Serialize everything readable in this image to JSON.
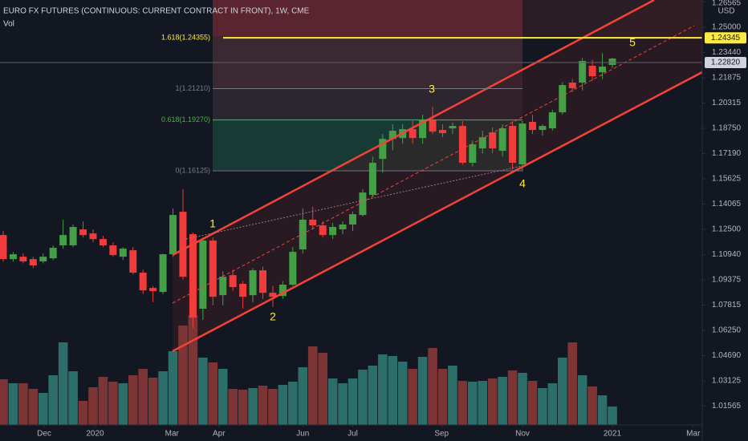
{
  "chart_data": {
    "type": "candlestick",
    "title": "EURO FX FUTURES (CONTINUOUS: CURRENT CONTRACT IN FRONT), 1W, CME",
    "volume_label": "Vol",
    "currency": "USD",
    "up_color": "#43a047",
    "down_color": "#f23b3b",
    "volume_up_color": "#2b6e6a",
    "volume_down_color": "#7c3434",
    "open": [
      1.1215,
      1.1066,
      1.1081,
      1.1066,
      1.1052,
      1.1071,
      1.1151,
      1.1151,
      1.125,
      1.1225,
      1.119,
      1.1151,
      1.1081,
      1.1121,
      1.0982,
      1.0888,
      1.0863,
      1.1096,
      1.1359,
      1.122,
      1.0759,
      1.1181,
      1.0843,
      1.0967,
      1.0913,
      1.0843,
      1.0997,
      1.0858,
      1.0838,
      1.0908,
      1.1126,
      1.131,
      1.1275,
      1.1215,
      1.125,
      1.128,
      1.1339,
      1.1463,
      1.1686,
      1.181,
      1.1815,
      1.187,
      1.1815,
      1.1925,
      1.1865,
      1.1875,
      1.189,
      1.1662,
      1.1751,
      1.185,
      1.1736,
      1.189,
      1.1652,
      1.1915,
      1.1865,
      1.1875,
      1.1974,
      1.2158,
      1.2158,
      1.2262,
      1.2222,
      1.2267
    ],
    "high": [
      1.124,
      1.111,
      1.11,
      1.108,
      1.11,
      1.115,
      1.131,
      1.128,
      1.13,
      1.125,
      1.121,
      1.117,
      1.114,
      1.114,
      1.1,
      1.09,
      1.11,
      1.138,
      1.15,
      1.123,
      1.12,
      1.12,
      1.099,
      1.1,
      1.093,
      1.101,
      1.102,
      1.09,
      1.093,
      1.114,
      1.138,
      1.139,
      1.13,
      1.129,
      1.13,
      1.136,
      1.15,
      1.17,
      1.184,
      1.19,
      1.19,
      1.192,
      1.196,
      1.201,
      1.19,
      1.191,
      1.192,
      1.18,
      1.186,
      1.188,
      1.19,
      1.192,
      1.192,
      1.196,
      1.19,
      1.199,
      1.216,
      1.218,
      1.231,
      1.23,
      1.234,
      1.231
    ],
    "low": [
      1.105,
      1.105,
      1.104,
      1.101,
      1.104,
      1.106,
      1.113,
      1.114,
      1.12,
      1.117,
      1.114,
      1.108,
      1.106,
      1.097,
      1.085,
      1.08,
      1.085,
      1.108,
      1.094,
      1.064,
      1.069,
      1.078,
      1.078,
      1.087,
      1.076,
      1.08,
      1.082,
      1.077,
      1.082,
      1.09,
      1.11,
      1.125,
      1.12,
      1.119,
      1.122,
      1.124,
      1.133,
      1.145,
      1.16,
      1.174,
      1.178,
      1.178,
      1.178,
      1.184,
      1.182,
      1.184,
      1.165,
      1.164,
      1.172,
      1.172,
      1.17,
      1.162,
      1.161,
      1.184,
      1.183,
      1.186,
      1.196,
      1.21,
      1.211,
      1.217,
      1.218,
      1.225
    ],
    "close": [
      1.1066,
      1.1096,
      1.1052,
      1.1027,
      1.1081,
      1.1136,
      1.1215,
      1.1265,
      1.1215,
      1.119,
      1.1151,
      1.1091,
      1.1131,
      1.0982,
      1.0873,
      1.0868,
      1.1096,
      1.1339,
      1.0957,
      1.0704,
      1.1181,
      1.0833,
      1.0957,
      1.0893,
      1.0833,
      1.0997,
      1.0858,
      1.0833,
      1.0908,
      1.1111,
      1.131,
      1.1275,
      1.1215,
      1.1265,
      1.128,
      1.1344,
      1.1478,
      1.1662,
      1.181,
      1.186,
      1.187,
      1.1815,
      1.1925,
      1.1855,
      1.1845,
      1.189,
      1.1662,
      1.1776,
      1.182,
      1.1751,
      1.1875,
      1.1662,
      1.1905,
      1.1865,
      1.189,
      1.1974,
      1.2143,
      1.2123,
      1.2292,
      1.2197,
      1.2257,
      1.2307
    ],
    "volume": [
      57,
      52,
      52,
      45,
      40,
      62,
      103,
      67,
      30,
      47,
      60,
      54,
      52,
      62,
      70,
      59,
      67,
      92,
      124,
      137,
      84,
      78,
      70,
      45,
      44,
      46,
      49,
      45,
      50,
      54,
      72,
      98,
      90,
      58,
      52,
      58,
      69,
      74,
      88,
      86,
      79,
      70,
      85,
      96,
      70,
      74,
      55,
      54,
      55,
      58,
      60,
      68,
      65,
      55,
      46,
      52,
      84,
      103,
      62,
      48,
      37,
      23
    ],
    "vol_lim": [
      0,
      530
    ],
    "xlim": [
      -0.32,
      70
    ],
    "xticks": [
      {
        "value": 4.1,
        "label": "Dec"
      },
      {
        "value": 9.2,
        "label": "2020"
      },
      {
        "value": 16.9,
        "label": "Mar"
      },
      {
        "value": 21.6,
        "label": "Apr"
      },
      {
        "value": 30.0,
        "label": "Jun"
      },
      {
        "value": 35.0,
        "label": "Jul"
      },
      {
        "value": 43.9,
        "label": "Sep"
      },
      {
        "value": 52.0,
        "label": "Nov"
      },
      {
        "value": 61.0,
        "label": "2021"
      },
      {
        "value": 69.1,
        "label": "Mar"
      }
    ],
    "ylim": [
      1.004,
      1.2669
    ],
    "yticks": [
      {
        "value": 1.26565,
        "label": "1.26565"
      },
      {
        "value": 1.25,
        "label": "1.25000"
      },
      {
        "value": 1.2344,
        "label": "1.23440"
      },
      {
        "value": 1.21875,
        "label": "1.21875"
      },
      {
        "value": 1.20315,
        "label": "1.20315"
      },
      {
        "value": 1.1875,
        "label": "1.18750"
      },
      {
        "value": 1.1719,
        "label": "1.17190"
      },
      {
        "value": 1.15625,
        "label": "1.15625"
      },
      {
        "value": 1.14065,
        "label": "1.14065"
      },
      {
        "value": 1.125,
        "label": "1.12500"
      },
      {
        "value": 1.1094,
        "label": "1.10940"
      },
      {
        "value": 1.09375,
        "label": "1.09375"
      },
      {
        "value": 1.07815,
        "label": "1.07815"
      },
      {
        "value": 1.0625,
        "label": "1.06250"
      },
      {
        "value": 1.0469,
        "label": "1.04690"
      },
      {
        "value": 1.03125,
        "label": "1.03125"
      },
      {
        "value": 1.01565,
        "label": "1.01565"
      }
    ],
    "fib_levels": [
      {
        "label": "1.618(1.24355)",
        "value": 1.24355,
        "color": "#ffeb3b"
      },
      {
        "label": "1(1.21210)",
        "value": 1.2121,
        "color": "#787b86"
      },
      {
        "label": "0.618(1.19270)",
        "value": 1.1927,
        "color": "#4caf50"
      },
      {
        "label": "0(1.16125)",
        "value": 1.16125,
        "color": "#787b86"
      }
    ],
    "price_labels": [
      {
        "label": "1.24345",
        "value": 1.24345,
        "color": "#ffeb3b"
      },
      {
        "label": "1.22820",
        "value": 1.2282,
        "color": "#d1d4dc"
      }
    ],
    "wave_labels": [
      "1",
      "2",
      "3",
      "4",
      "5"
    ]
  }
}
